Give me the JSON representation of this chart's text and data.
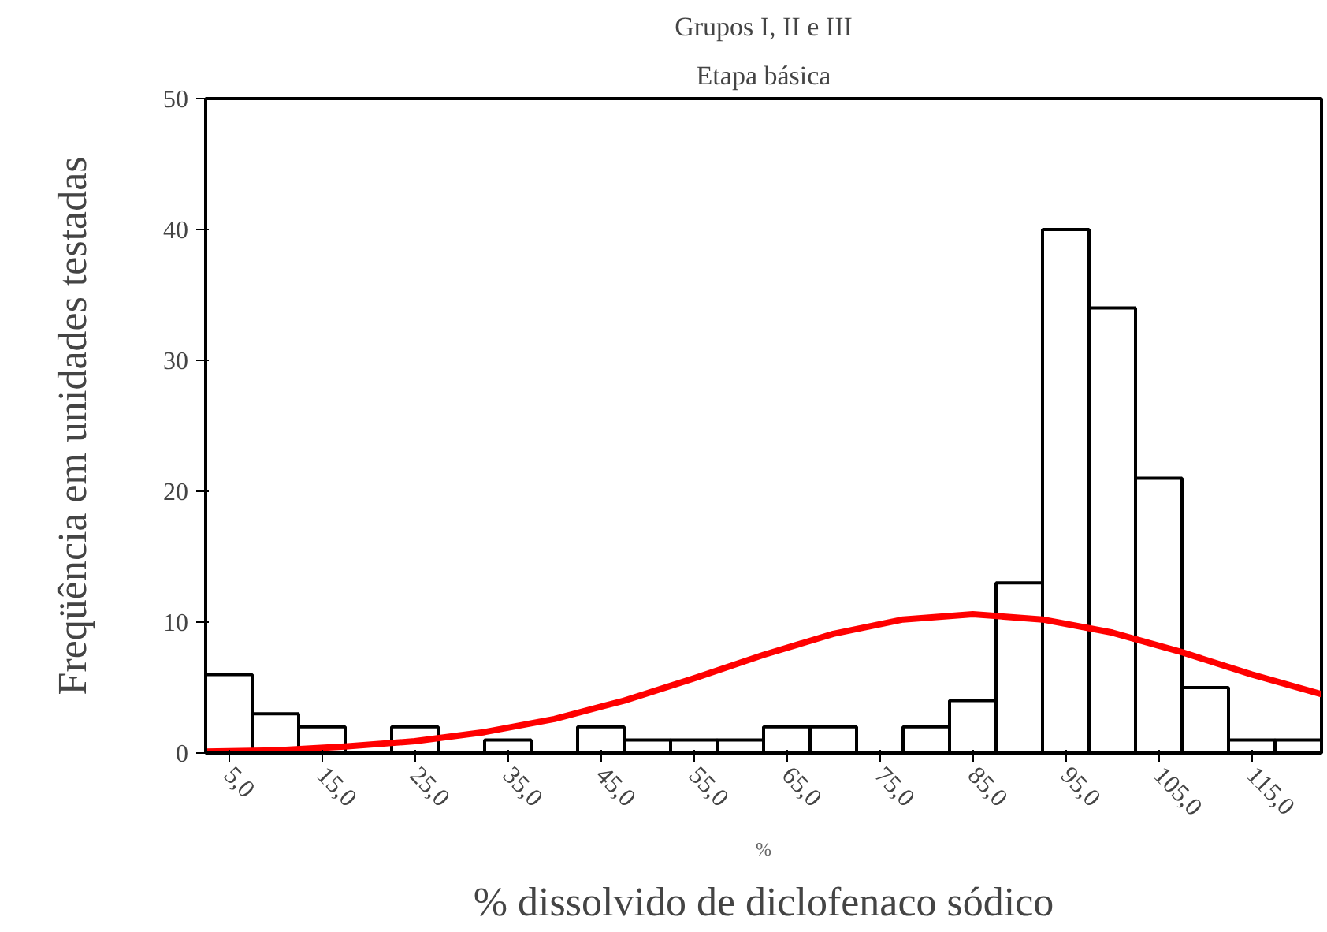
{
  "chart_data": {
    "type": "histogram",
    "title": "Grupos I, II e III",
    "subtitle": "Etapa básica",
    "xlabel": "% dissolvido de diclofenaco sódico",
    "ylabel": "Freqüência em unidades testadas",
    "bins": [
      2.5,
      7.5,
      12.5,
      17.5,
      22.5,
      27.5,
      32.5,
      37.5,
      42.5,
      47.5,
      52.5,
      57.5,
      62.5,
      67.5,
      72.5,
      77.5,
      82.5,
      87.5,
      92.5,
      97.5,
      102.5,
      107.5,
      112.5,
      117.5,
      122.5
    ],
    "values": [
      6,
      3,
      2,
      0,
      2,
      0,
      1,
      0,
      2,
      1,
      1,
      1,
      2,
      2,
      0,
      2,
      4,
      13,
      40,
      34,
      21,
      5,
      1,
      1
    ],
    "color": "#ffffff",
    "series": [
      {
        "type": "line",
        "color": "#ff0000",
        "x": [
          2.5,
          10,
          17.5,
          25,
          32.5,
          40,
          47.5,
          55,
          62.5,
          70,
          77.5,
          85,
          92.5,
          100,
          107.5,
          115,
          122.5
        ],
        "values": [
          0.1,
          0.2,
          0.5,
          0.9,
          1.6,
          2.6,
          4.0,
          5.7,
          7.5,
          9.1,
          10.2,
          10.6,
          10.2,
          9.2,
          7.7,
          6.0,
          4.5
        ]
      }
    ],
    "xlim": [
      2.5,
      122.5
    ],
    "ylim": [
      0,
      50
    ],
    "xticks": [
      {
        "value": 5,
        "label": "5,0"
      },
      {
        "value": 15,
        "label": "15,0"
      },
      {
        "value": 25,
        "label": "25,0"
      },
      {
        "value": 35,
        "label": "35,0"
      },
      {
        "value": 45,
        "label": "45,0"
      },
      {
        "value": 55,
        "label": "55,0"
      },
      {
        "value": 65,
        "label": "65,0"
      },
      {
        "value": 75,
        "label": "75,0"
      },
      {
        "value": 85,
        "label": "85,0"
      },
      {
        "value": 95,
        "label": "95,0"
      },
      {
        "value": 105,
        "label": "105,0"
      },
      {
        "value": 115,
        "label": "115,0"
      }
    ],
    "yticks": [
      0,
      10,
      20,
      30,
      40,
      50
    ],
    "annotations": [
      "%"
    ],
    "grid": false
  }
}
